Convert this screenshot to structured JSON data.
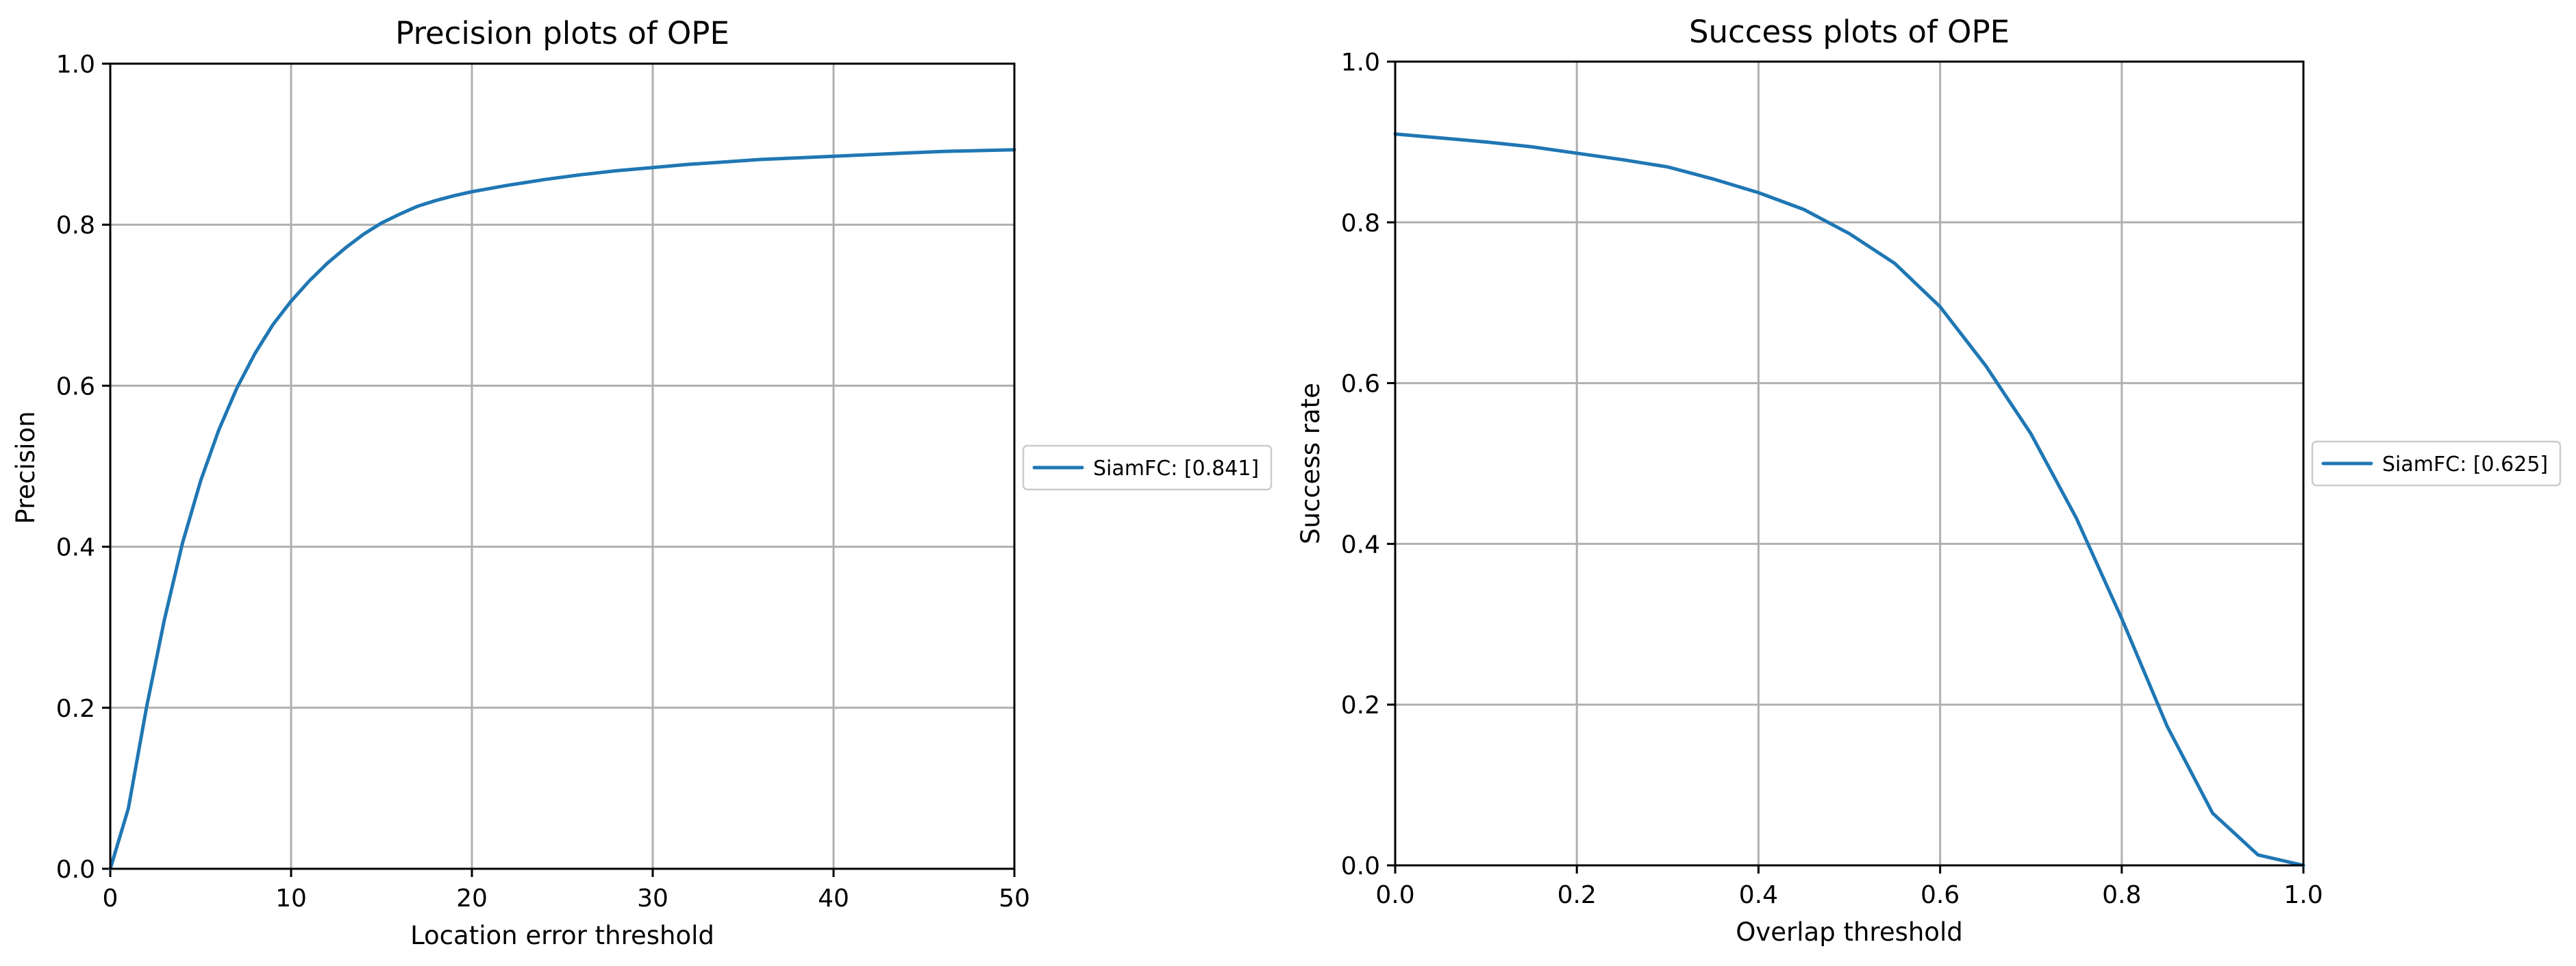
{
  "chart_data": [
    {
      "type": "line",
      "title": "Precision plots of OPE",
      "xlabel": "Location error threshold",
      "ylabel": "Precision",
      "xlim": [
        0,
        50
      ],
      "ylim": [
        0,
        1
      ],
      "xticks": [
        "0",
        "10",
        "20",
        "30",
        "40",
        "50"
      ],
      "yticks": [
        "0.0",
        "0.2",
        "0.4",
        "0.6",
        "0.8",
        "1.0"
      ],
      "grid": true,
      "legend": "right-outside",
      "series": [
        {
          "name": "SiamFC: [0.841]",
          "color": "#1f77b4",
          "x": [
            0,
            1,
            2,
            3,
            4,
            5,
            6,
            7,
            8,
            9,
            10,
            11,
            12,
            13,
            14,
            15,
            16,
            17,
            18,
            19,
            20,
            22,
            24,
            26,
            28,
            30,
            32,
            34,
            36,
            38,
            40,
            42,
            44,
            46,
            48,
            50
          ],
          "y": [
            0.0,
            0.075,
            0.2,
            0.31,
            0.405,
            0.482,
            0.545,
            0.597,
            0.64,
            0.676,
            0.705,
            0.73,
            0.752,
            0.771,
            0.788,
            0.802,
            0.813,
            0.823,
            0.83,
            0.836,
            0.841,
            0.849,
            0.856,
            0.862,
            0.867,
            0.871,
            0.875,
            0.878,
            0.881,
            0.883,
            0.885,
            0.887,
            0.889,
            0.891,
            0.892,
            0.893
          ]
        }
      ]
    },
    {
      "type": "line",
      "title": "Success plots of OPE",
      "xlabel": "Overlap threshold",
      "ylabel": "Success rate",
      "xlim": [
        0,
        1
      ],
      "ylim": [
        0,
        1
      ],
      "xticks": [
        "0.0",
        "0.2",
        "0.4",
        "0.6",
        "0.8",
        "1.0"
      ],
      "yticks": [
        "0.0",
        "0.2",
        "0.4",
        "0.6",
        "0.8",
        "1.0"
      ],
      "grid": true,
      "legend": "right-outside",
      "series": [
        {
          "name": "SiamFC: [0.625]",
          "color": "#1f77b4",
          "x": [
            0.0,
            0.05,
            0.1,
            0.15,
            0.2,
            0.25,
            0.3,
            0.35,
            0.4,
            0.45,
            0.5,
            0.55,
            0.6,
            0.65,
            0.7,
            0.75,
            0.8,
            0.85,
            0.9,
            0.95,
            1.0
          ],
          "y": [
            0.91,
            0.905,
            0.9,
            0.894,
            0.886,
            0.878,
            0.869,
            0.854,
            0.837,
            0.816,
            0.786,
            0.749,
            0.695,
            0.622,
            0.537,
            0.432,
            0.307,
            0.173,
            0.065,
            0.013,
            0.0
          ]
        }
      ]
    }
  ]
}
